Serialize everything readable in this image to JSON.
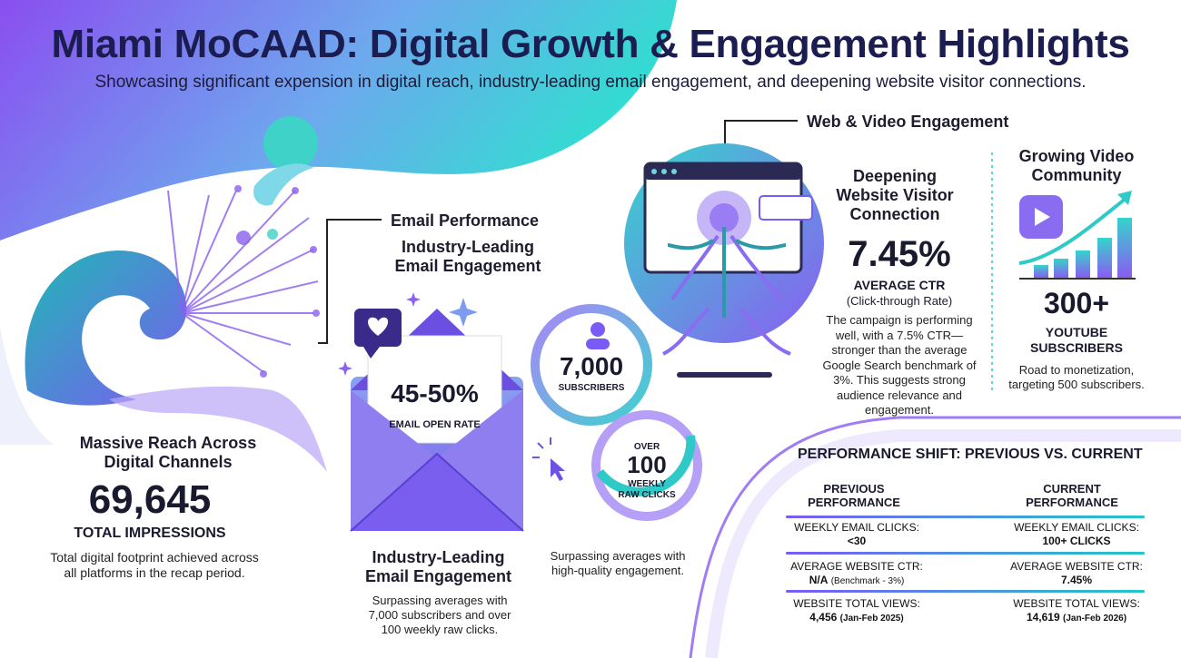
{
  "header": {
    "title": "Miami MoCAAD: Digital Growth & Engagement Highlights",
    "subtitle": "Showcasing significant expension in digital reach, industry-leading email engagement, and deepening website visitor connections."
  },
  "reach": {
    "heading": "Massive Reach Across Digital Channels",
    "value": "69,645",
    "label": "TOTAL IMPRESSIONS",
    "description": "Total digital footprint achieved across all platforms in the recap period."
  },
  "email": {
    "section_label": "Email Performance",
    "top_heading": "Industry-Leading Email Engagement",
    "open_rate": "45-50%",
    "open_rate_label": "EMAIL OPEN RATE",
    "bottom_heading": "Industry-Leading Email Engagement",
    "bottom_description": "Surpassing averages with 7,000 subscribers and over 100 weekly raw clicks."
  },
  "subscribers": {
    "value": "7,000",
    "label": "SUBSCRIBERS"
  },
  "clicks": {
    "prefix": "OVER",
    "value": "100",
    "label": "WEEKLY RAW CLICKS",
    "description": "Surpassing averages with high-quality engagement."
  },
  "web": {
    "section_label": "Web & Video Engagement",
    "heading": "Deepening Website Visitor Connection",
    "ctr_value": "7.45%",
    "ctr_label": "AVERAGE CTR",
    "ctr_sub": "(Click-through Rate)",
    "description": "The campaign is performing well, with a 7.5% CTR—stronger than the average Google Search benchmark of 3%. This suggests strong audience relevance and engagement."
  },
  "video": {
    "heading": "Growing Video Community",
    "value": "300+",
    "label": "YOUTUBE SUBSCRIBERS",
    "description": "Road to monetization, targeting 500 subscribers."
  },
  "performance": {
    "title": "PERFORMANCE SHIFT: PREVIOUS VS. CURRENT",
    "previous_header": "PREVIOUS PERFORMANCE",
    "current_header": "CURRENT PERFORMANCE",
    "rows": [
      {
        "prev_label": "WEEKLY EMAIL CLICKS:",
        "prev_value": "<30",
        "prev_note": "",
        "curr_label": "WEEKLY EMAIL CLICKS:",
        "curr_value": "100+ CLICKS",
        "curr_note": ""
      },
      {
        "prev_label": "AVERAGE WEBSITE CTR:",
        "prev_value": "N/A",
        "prev_note": "(Benchmark - 3%)",
        "curr_label": "AVERAGE WEBSITE CTR:",
        "curr_value": "7.45%",
        "curr_note": ""
      },
      {
        "prev_label": "WEBSITE TOTAL VIEWS:",
        "prev_value": "4,456",
        "prev_note": "(Jan-Feb 2025)",
        "curr_label": "WEBSITE TOTAL VIEWS:",
        "curr_value": "14,619",
        "curr_note": "(Jan-Feb 2026)"
      }
    ]
  },
  "colors": {
    "primary_purple": "#7a5af8",
    "teal": "#21c7c9",
    "navy": "#1b1c4f"
  }
}
